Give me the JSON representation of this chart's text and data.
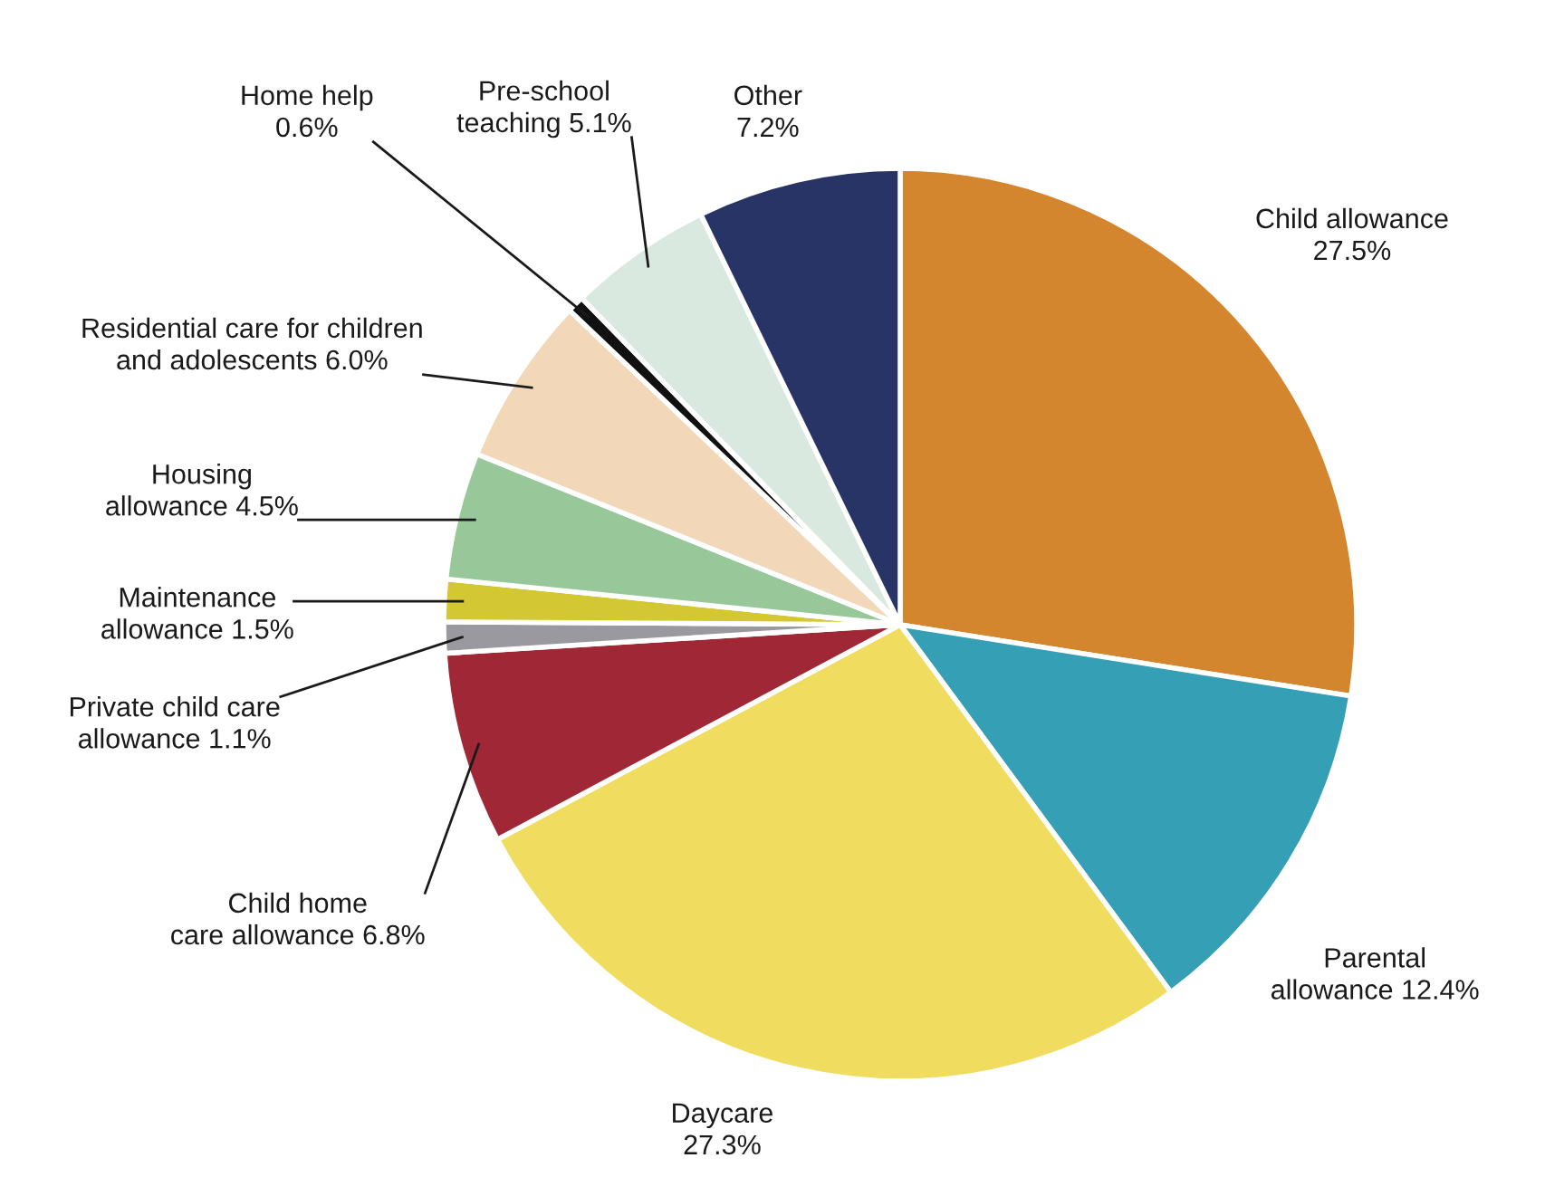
{
  "chart_data": {
    "type": "pie",
    "categories": [
      "Child allowance",
      "Parental\nallowance",
      "Daycare",
      "Child home\ncare allowance",
      "Private child care\nallowance",
      "Maintenance\nallowance",
      "Housing\nallowance",
      "Residential care for children\nand adolescents",
      "Home help",
      "Pre-school\nteaching",
      "Other"
    ],
    "values": [
      27.5,
      12.4,
      27.3,
      6.8,
      1.1,
      1.5,
      4.5,
      6.0,
      0.6,
      5.1,
      7.2
    ],
    "colors": [
      "#d4862f",
      "#359fb5",
      "#f0dc5f",
      "#a02735",
      "#9a99a0",
      "#d4c832",
      "#98c79a",
      "#f2d8b8",
      "#111111",
      "#dae9e0",
      "#283466"
    ],
    "value_labels": [
      "27.5%",
      "12.4%",
      "27.3%",
      "6.8%",
      "1.1%",
      "1.5%",
      "4.5%",
      "6.0%",
      "0.6%",
      "5.1%",
      "7.2%"
    ]
  }
}
